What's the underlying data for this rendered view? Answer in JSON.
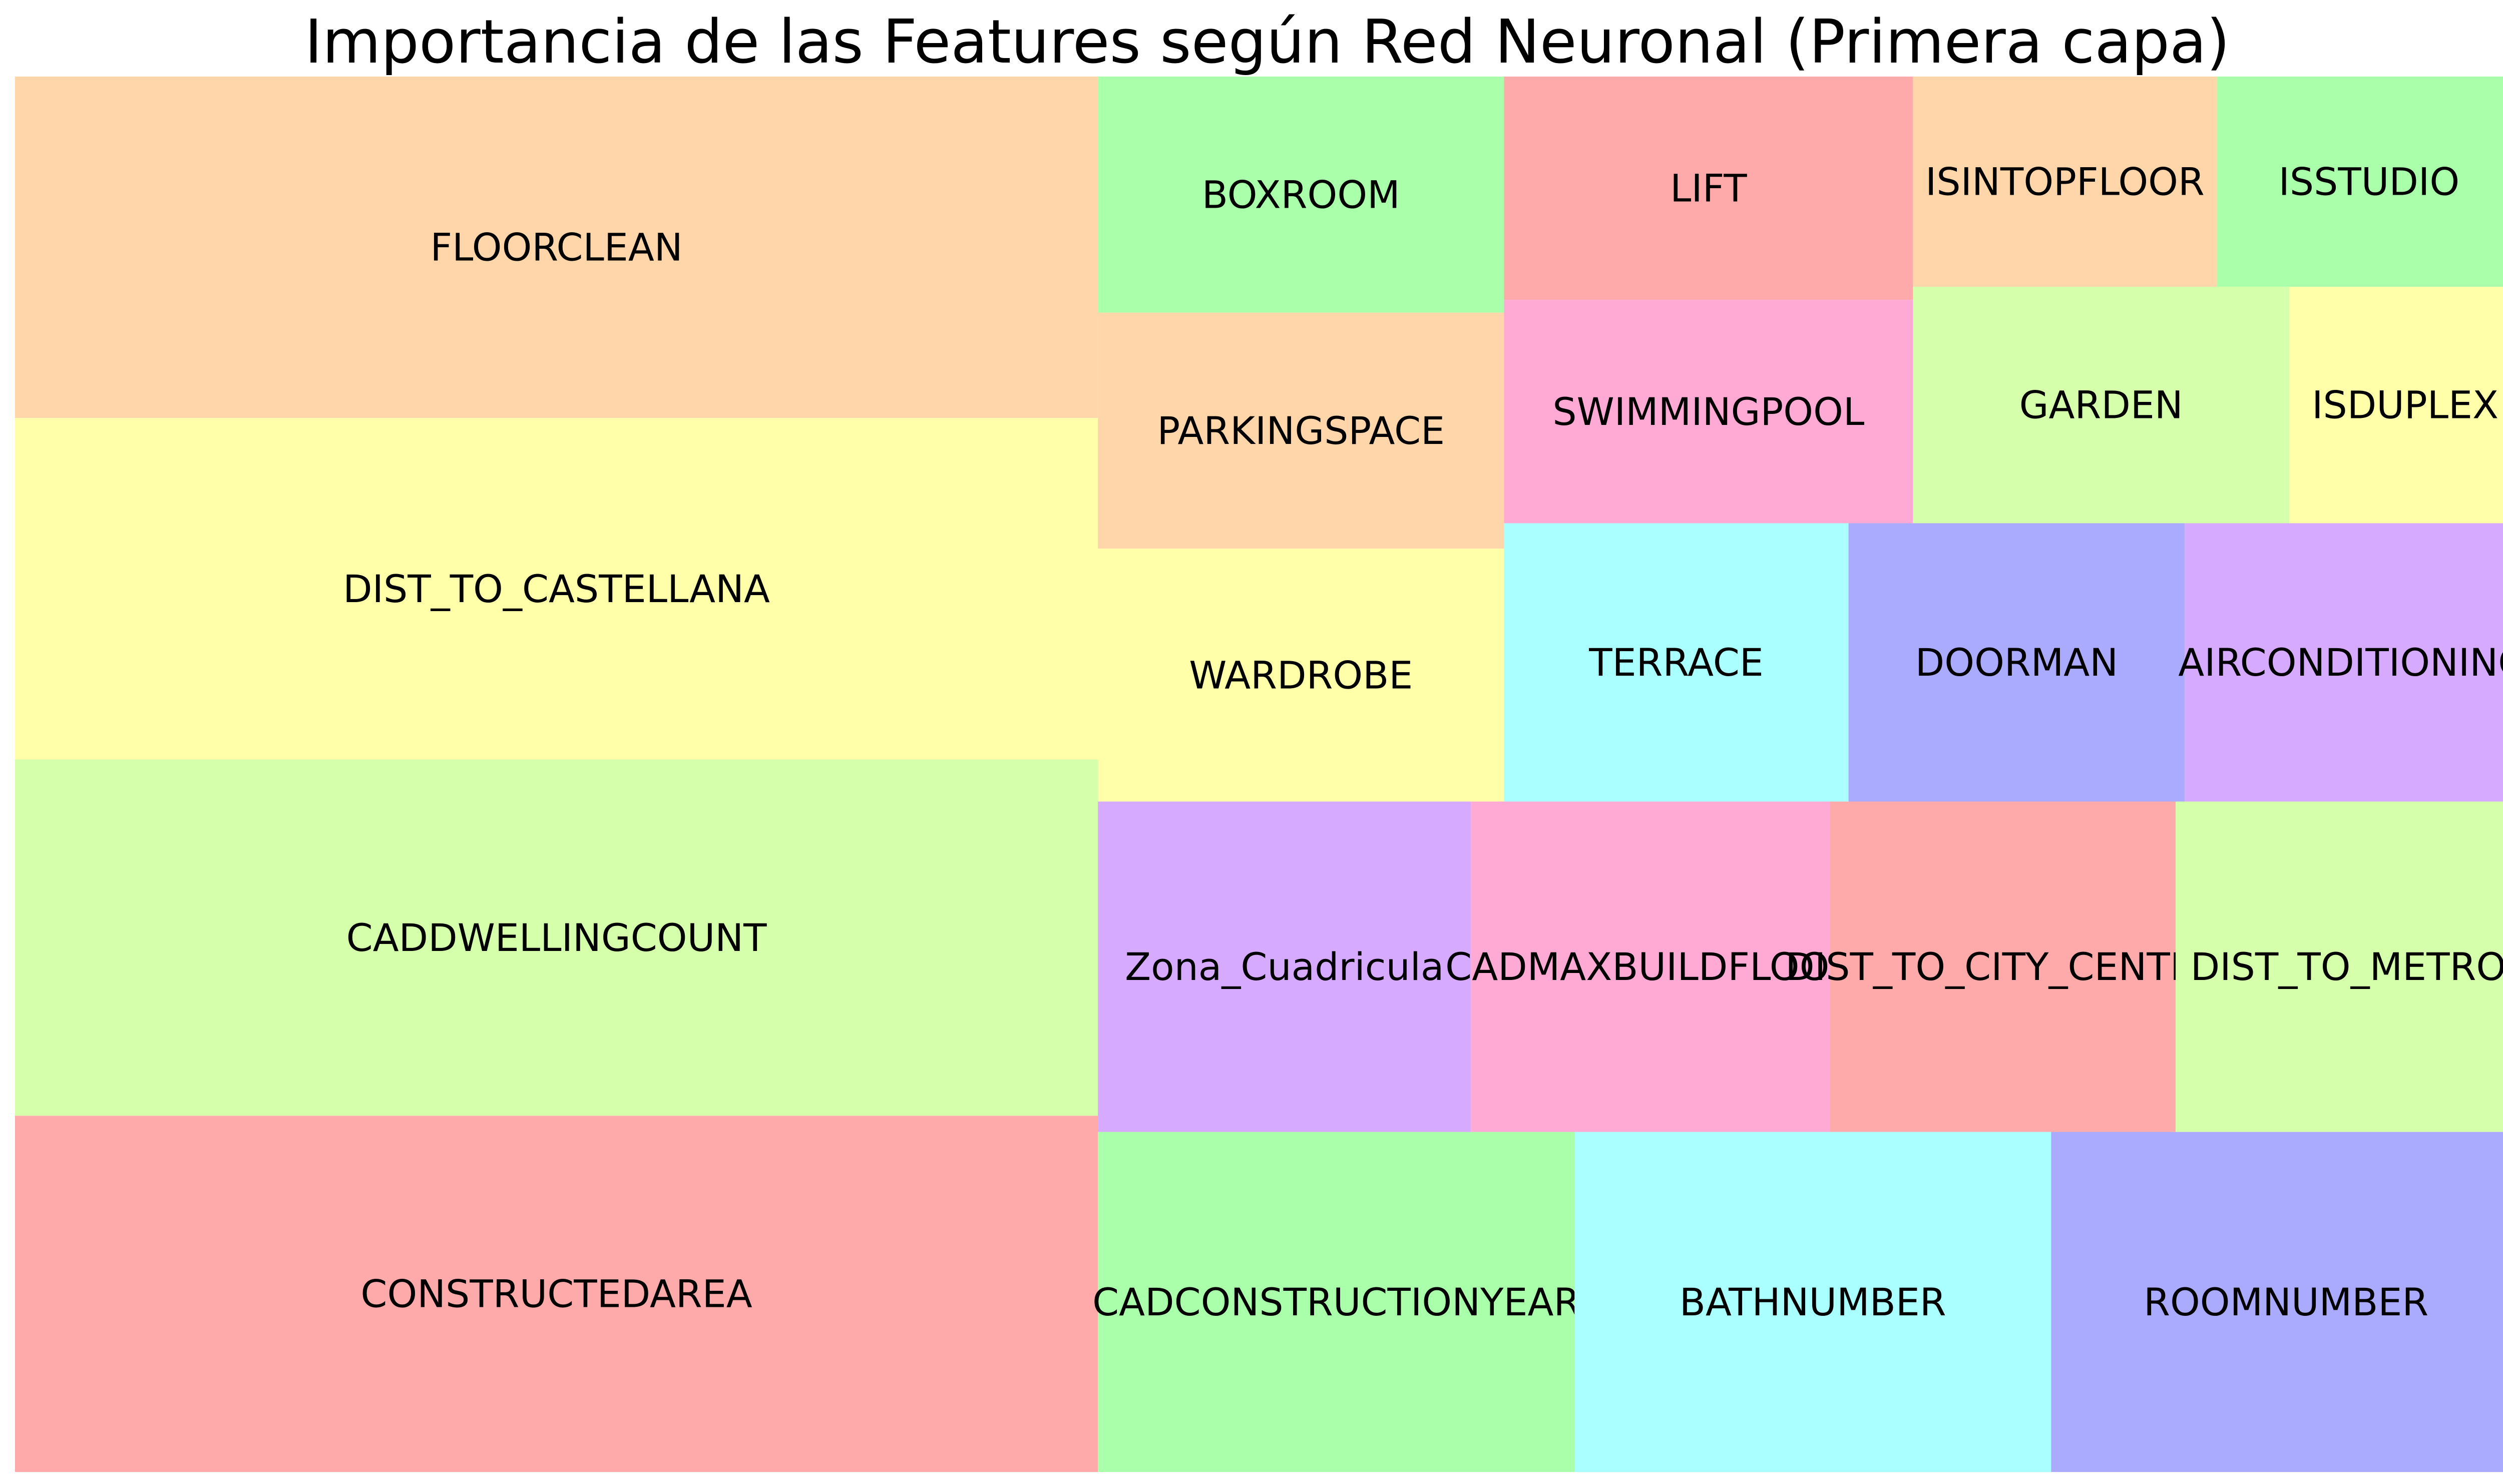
{
  "chart_data": {
    "type": "treemap",
    "title": "Importancia de las Features según Red Neuronal (Primera capa)",
    "palette": [
      "#ffaaaa",
      "#aaffaa",
      "#ffd6aa",
      "#ffffaa",
      "#aaaaff",
      "#ffaad5",
      "#aaffff",
      "#d5aaff",
      "#d5ffaa"
    ],
    "items": [
      {
        "label": "CONSTRUCTEDAREA",
        "value": 169,
        "color": "#ffaaaa"
      },
      {
        "label": "CADDWELLINGCOUNT",
        "value": 169,
        "color": "#d5ffaa"
      },
      {
        "label": "DIST_TO_CASTELLANA",
        "value": 162,
        "color": "#ffffaa"
      },
      {
        "label": "FLOORCLEAN",
        "value": 162,
        "color": "#ffd6aa"
      },
      {
        "label": "CADCONSTRUCTIONYEAR",
        "value": 71,
        "color": "#aaffaa"
      },
      {
        "label": "BATHNUMBER",
        "value": 71,
        "color": "#aaffff"
      },
      {
        "label": "ROOMNUMBER",
        "value": 70,
        "color": "#aaaaff"
      },
      {
        "label": "Zona_Cuadricula",
        "value": 54,
        "color": "#d5aaff"
      },
      {
        "label": "CADMAXBUILDFLOOR",
        "value": 52,
        "color": "#ffaad5"
      },
      {
        "label": "DIST_TO_CITY_CENTER",
        "value": 50,
        "color": "#ffaaaa"
      },
      {
        "label": "DIST_TO_METRO",
        "value": 50,
        "color": "#d5ffaa"
      },
      {
        "label": "WARDROBE",
        "value": 45,
        "color": "#ffffaa"
      },
      {
        "label": "PARKINGSPACE",
        "value": 42,
        "color": "#ffd6aa"
      },
      {
        "label": "BOXROOM",
        "value": 42,
        "color": "#aaffaa"
      },
      {
        "label": "TERRACE",
        "value": 42,
        "color": "#aaffff"
      },
      {
        "label": "DOORMAN",
        "value": 41,
        "color": "#aaaaff"
      },
      {
        "label": "AIRCONDITIONING",
        "value": 41,
        "color": "#d5aaff"
      },
      {
        "label": "SWIMMINGPOOL",
        "value": 40,
        "color": "#ffaad5"
      },
      {
        "label": "LIFT",
        "value": 40,
        "color": "#ffaaaa"
      },
      {
        "label": "GARDEN",
        "value": 39,
        "color": "#d5ffaa"
      },
      {
        "label": "ISDUPLEX",
        "value": 24,
        "color": "#ffffaa"
      },
      {
        "label": "ISINTOPFLOOR",
        "value": 28,
        "color": "#ffd6aa"
      },
      {
        "label": "ISSTUDIO",
        "value": 28,
        "color": "#aaffaa"
      }
    ]
  }
}
